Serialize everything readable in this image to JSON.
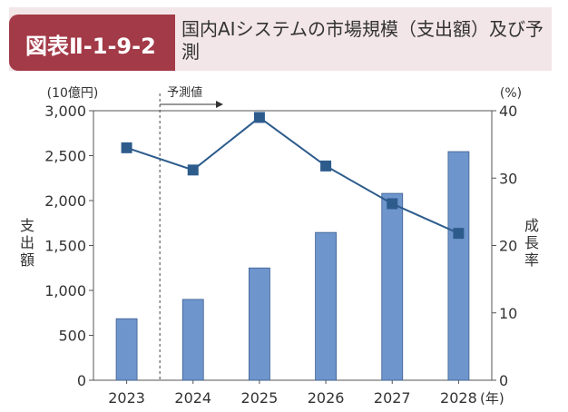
{
  "figure": {
    "label": "図表Ⅱ-1-9-2",
    "title": "国内AIシステムの市場規模（支出額）及び予測"
  },
  "colors": {
    "badge": "#a33a47",
    "header_band": "#f3e6e8",
    "bar": "#6e95cc",
    "line": "#2d5c8c"
  },
  "chart_data": {
    "type": "bar",
    "categories": [
      "2023",
      "2024",
      "2025",
      "2026",
      "2027",
      "2028"
    ],
    "x_unit": "(年)",
    "series": [
      {
        "name": "支出額",
        "type": "bar",
        "axis": "left",
        "values": [
          685,
          900,
          1250,
          1645,
          2080,
          2545
        ]
      },
      {
        "name": "成長率",
        "type": "line",
        "axis": "right",
        "values": [
          34.5,
          31.2,
          39.0,
          31.8,
          26.2,
          21.8
        ]
      }
    ],
    "y_left": {
      "label": "支出額",
      "unit": "(10億円)",
      "ylim": [
        0,
        3000
      ],
      "ticks": [
        0,
        500,
        1000,
        1500,
        2000,
        2500,
        3000
      ],
      "tick_labels": [
        "0",
        "500",
        "1,000",
        "1,500",
        "2,000",
        "2,500",
        "3,000"
      ]
    },
    "y_right": {
      "label": "成長率",
      "unit": "(%)",
      "ylim": [
        0,
        40
      ],
      "ticks": [
        0,
        10,
        20,
        30,
        40
      ],
      "tick_labels": [
        "0",
        "10",
        "20",
        "30",
        "40"
      ]
    },
    "annotation": {
      "text": "予測値",
      "from_category": "2024"
    },
    "grid": false
  }
}
